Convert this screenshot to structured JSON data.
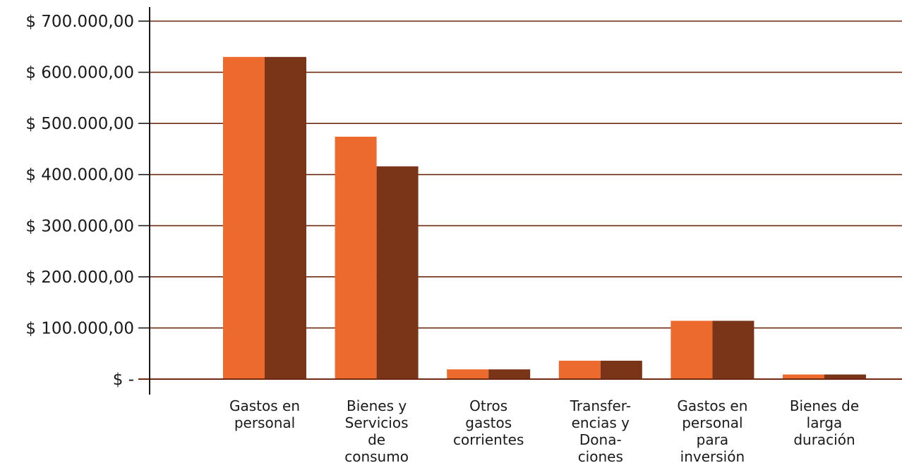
{
  "chart_data": {
    "type": "bar",
    "title": "",
    "xlabel": "",
    "ylabel": "",
    "ylim": [
      0,
      700000
    ],
    "yticks": [
      {
        "value": 0,
        "label": "$ -"
      },
      {
        "value": 100000,
        "label": "$ 100.000,00"
      },
      {
        "value": 200000,
        "label": "$ 200.000,00"
      },
      {
        "value": 300000,
        "label": "$ 300.000,00"
      },
      {
        "value": 400000,
        "label": "$ 400.000,00"
      },
      {
        "value": 500000,
        "label": "$ 500.000,00"
      },
      {
        "value": 600000,
        "label": "$ 600.000,00"
      },
      {
        "value": 700000,
        "label": "$ 700.000,00"
      }
    ],
    "grid": true,
    "legend": "none",
    "categories": [
      [
        "Gastos en",
        "personal"
      ],
      [
        "Bienes y",
        "Servicios",
        "de",
        "consumo"
      ],
      [
        "Otros",
        "gastos",
        "corrientes"
      ],
      [
        "Transfer-",
        "encias y",
        "Dona-",
        "ciones"
      ],
      [
        "Gastos en",
        "personal",
        "para",
        "inversión"
      ],
      [
        "Bienes de",
        "larga",
        "duración"
      ]
    ],
    "series": [
      {
        "color": "#ec6a2e",
        "values": [
          630000,
          474000,
          19000,
          36000,
          114000,
          9000
        ]
      },
      {
        "color": "#7a3418",
        "values": [
          630000,
          416000,
          19000,
          36000,
          114000,
          9000
        ]
      }
    ],
    "colors": {
      "grid": "#6e2a10",
      "axis": "#1a1a1a"
    }
  }
}
